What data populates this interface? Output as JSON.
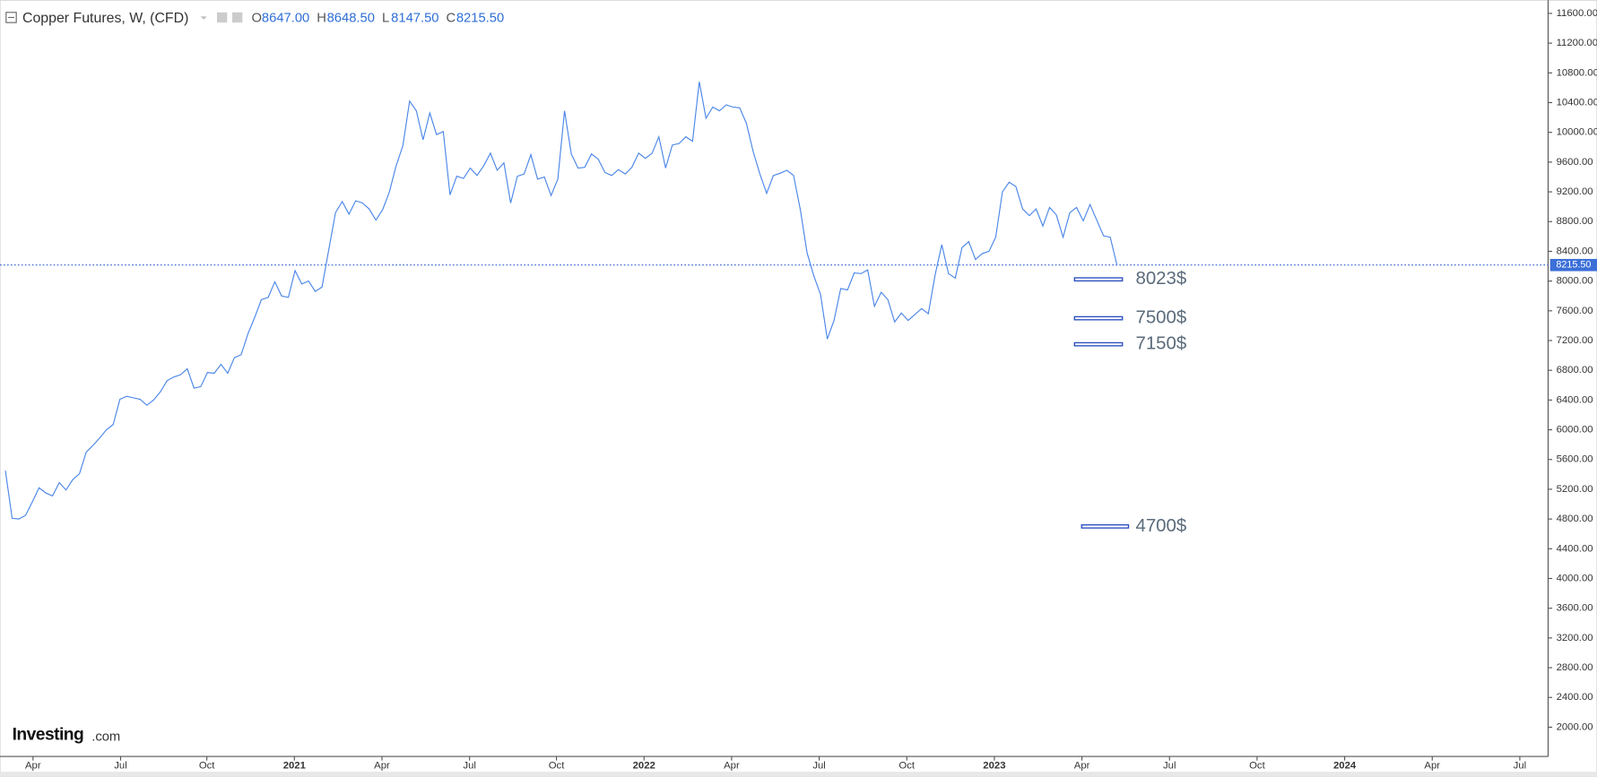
{
  "chart_data": {
    "type": "line",
    "title": "Copper Futures, W, (CFD)",
    "ohlc": [
      {
        "key": "O",
        "text": "8647.00"
      },
      {
        "key": "H",
        "text": "8648.50"
      },
      {
        "key": "L",
        "text": "8147.50"
      },
      {
        "key": "C",
        "text": "8215.50"
      }
    ],
    "color": "#4a86e8",
    "values": [
      5450,
      4810,
      4800,
      4850,
      5030,
      5220,
      5150,
      5110,
      5290,
      5190,
      5330,
      5410,
      5700,
      5790,
      5890,
      6000,
      6070,
      6410,
      6450,
      6430,
      6410,
      6330,
      6400,
      6510,
      6660,
      6710,
      6740,
      6820,
      6560,
      6580,
      6770,
      6760,
      6880,
      6760,
      6970,
      7010,
      7290,
      7510,
      7750,
      7780,
      7990,
      7800,
      7780,
      8140,
      7960,
      8000,
      7860,
      7920,
      8420,
      8920,
      9070,
      8900,
      9080,
      9050,
      8970,
      8820,
      8960,
      9200,
      9550,
      9820,
      10420,
      10290,
      9900,
      10260,
      9970,
      10010,
      9160,
      9410,
      9380,
      9520,
      9420,
      9550,
      9720,
      9490,
      9590,
      9050,
      9410,
      9440,
      9700,
      9370,
      9400,
      9150,
      9370,
      10290,
      9710,
      9520,
      9530,
      9710,
      9640,
      9460,
      9420,
      9500,
      9440,
      9530,
      9720,
      9650,
      9720,
      9940,
      9520,
      9830,
      9850,
      9940,
      9880,
      10680,
      10190,
      10340,
      10290,
      10370,
      10340,
      10330,
      10120,
      9740,
      9440,
      9180,
      9420,
      9450,
      9490,
      9420,
      8960,
      8380,
      8070,
      7820,
      7220,
      7470,
      7900,
      7880,
      8110,
      8100,
      8150,
      7660,
      7850,
      7750,
      7450,
      7570,
      7470,
      7550,
      7630,
      7560,
      8080,
      8490,
      8100,
      8040,
      8450,
      8530,
      8290,
      8370,
      8400,
      8590,
      9200,
      9330,
      9270,
      8970,
      8880,
      8970,
      8740,
      8990,
      8890,
      8590,
      8920,
      8990,
      8810,
      9030,
      8820,
      8610,
      8590,
      8215.5
    ],
    "xlim": [
      -0.8,
      229
    ],
    "xticks": [
      {
        "value": 4.1,
        "label": "Apr"
      },
      {
        "value": 17.1,
        "label": "Jul"
      },
      {
        "value": 29.9,
        "label": "Oct"
      },
      {
        "value": 42.9,
        "label": "2021"
      },
      {
        "value": 55.9,
        "label": "Apr"
      },
      {
        "value": 68.9,
        "label": "Jul"
      },
      {
        "value": 81.8,
        "label": "Oct"
      },
      {
        "value": 94.8,
        "label": "2022"
      },
      {
        "value": 107.8,
        "label": "Apr"
      },
      {
        "value": 120.8,
        "label": "Jul"
      },
      {
        "value": 133.8,
        "label": "Oct"
      },
      {
        "value": 146.8,
        "label": "2023"
      },
      {
        "value": 159.8,
        "label": "Apr"
      },
      {
        "value": 172.8,
        "label": "Jul"
      },
      {
        "value": 185.8,
        "label": "Oct"
      },
      {
        "value": 198.8,
        "label": "2024"
      },
      {
        "value": 211.8,
        "label": "Apr"
      },
      {
        "value": 224.8,
        "label": "Jul"
      }
    ],
    "ylim": [
      1606,
      11778
    ],
    "yticks": [
      {
        "value": 2000,
        "label": "2000.00"
      },
      {
        "value": 2400,
        "label": "2400.00"
      },
      {
        "value": 2800,
        "label": "2800.00"
      },
      {
        "value": 3200,
        "label": "3200.00"
      },
      {
        "value": 3600,
        "label": "3600.00"
      },
      {
        "value": 4000,
        "label": "4000.00"
      },
      {
        "value": 4400,
        "label": "4400.00"
      },
      {
        "value": 4800,
        "label": "4800.00"
      },
      {
        "value": 5200,
        "label": "5200.00"
      },
      {
        "value": 5600,
        "label": "5600.00"
      },
      {
        "value": 6000,
        "label": "6000.00"
      },
      {
        "value": 6400,
        "label": "6400.00"
      },
      {
        "value": 6800,
        "label": "6800.00"
      },
      {
        "value": 7200,
        "label": "7200.00"
      },
      {
        "value": 7600,
        "label": "7600.00"
      },
      {
        "value": 8000,
        "label": "8000.00"
      },
      {
        "value": 8400,
        "label": "8400.00"
      },
      {
        "value": 8800,
        "label": "8800.00"
      },
      {
        "value": 9200,
        "label": "9200.00"
      },
      {
        "value": 9600,
        "label": "9600.00"
      },
      {
        "value": 10000,
        "label": "10000.00"
      },
      {
        "value": 10400,
        "label": "10400.00"
      },
      {
        "value": 10800,
        "label": "10800.00"
      },
      {
        "value": 11200,
        "label": "11200.00"
      },
      {
        "value": 11600,
        "label": "11600.00"
      }
    ],
    "last_price": {
      "value": 8215.5,
      "label": "8215.50"
    },
    "levels": [
      {
        "value": 8023,
        "label": "8023$"
      },
      {
        "value": 7500,
        "label": "7500$"
      },
      {
        "value": 7150,
        "label": "7150$"
      },
      {
        "value": 4700,
        "label": "4700$"
      }
    ],
    "logo": "Investing",
    "logo_suffix": ".com"
  }
}
